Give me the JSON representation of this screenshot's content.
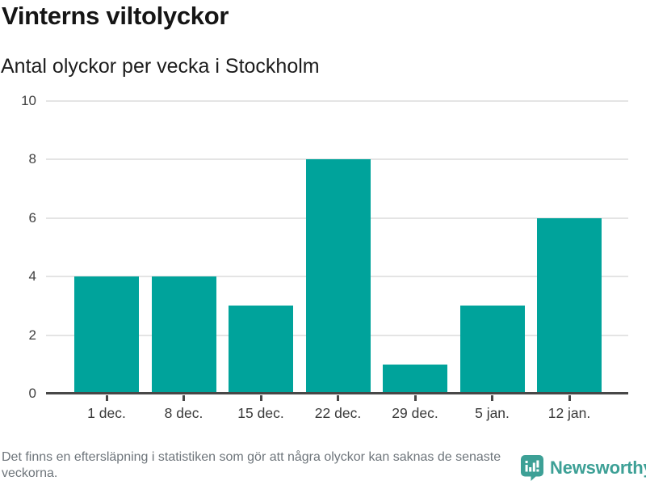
{
  "title": "Vinterns viltolyckor",
  "subtitle": "Antal olyckor per vecka i Stockholm",
  "footer": {
    "note": "Det finns en eftersläpning i statistiken som gör att några olyckor kan saknas de senaste veckorna.",
    "brand_name": "Newsworthy"
  },
  "icons": {
    "brand_icon": "newsworthy-speech-bubble-bar-chart-icon"
  },
  "colors": {
    "bar": "#00a39b",
    "brand": "#3da096",
    "grid": "#e4e4e4",
    "axis": "#474747",
    "title_text": "#151515",
    "axis_text": "#3f3f3f",
    "muted_text": "#6e757b"
  },
  "chart_data": {
    "type": "bar",
    "categories": [
      "1 dec.",
      "8 dec.",
      "15 dec.",
      "22 dec.",
      "29 dec.",
      "5 jan.",
      "12 jan."
    ],
    "values": [
      4,
      4,
      3,
      8,
      1,
      3,
      6
    ],
    "title": "Vinterns viltolyckor",
    "subtitle": "Antal olyckor per vecka i Stockholm",
    "xlabel": "",
    "ylabel": "Antal olyckor",
    "ylim": [
      0,
      10
    ],
    "yticks": [
      0,
      2,
      4,
      6,
      8,
      10
    ],
    "grid": true,
    "legend_position": "none",
    "bar_color": "#00a39b"
  }
}
